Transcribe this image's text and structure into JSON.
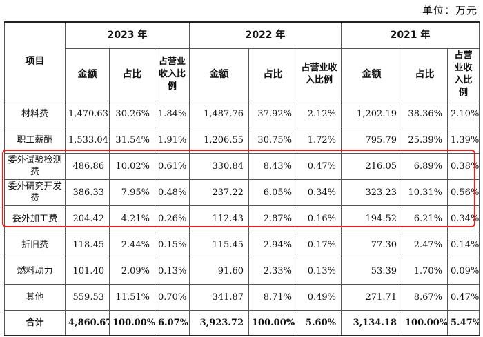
{
  "unit_label": "单位：万元",
  "header": {
    "item": "项目",
    "years": [
      "2023 年",
      "2022 年",
      "2021 年"
    ],
    "sub": [
      "金额",
      "占比",
      "占营业收入比例"
    ]
  },
  "rows": [
    {
      "label": "材料费",
      "v": [
        "1,470.63",
        "30.26%",
        "1.84%",
        "1,487.76",
        "37.92%",
        "2.12%",
        "1,202.19",
        "38.36%",
        "2.10%"
      ]
    },
    {
      "label": "职工薪酬",
      "v": [
        "1,533.04",
        "31.54%",
        "1.91%",
        "1,206.55",
        "30.75%",
        "1.72%",
        "795.79",
        "25.39%",
        "1.39%"
      ]
    },
    {
      "label": "委外试验检测费",
      "v": [
        "486.86",
        "10.02%",
        "0.61%",
        "330.84",
        "8.43%",
        "0.47%",
        "216.05",
        "6.89%",
        "0.38%"
      ]
    },
    {
      "label": "委外研究开发费",
      "v": [
        "386.33",
        "7.95%",
        "0.48%",
        "237.22",
        "6.05%",
        "0.34%",
        "323.23",
        "10.31%",
        "0.56%"
      ]
    },
    {
      "label": "委外加工费",
      "v": [
        "204.42",
        "4.21%",
        "0.26%",
        "112.43",
        "2.87%",
        "0.16%",
        "194.52",
        "6.21%",
        "0.34%"
      ]
    },
    {
      "label": "折旧费",
      "v": [
        "118.45",
        "2.44%",
        "0.15%",
        "115.45",
        "2.94%",
        "0.17%",
        "77.30",
        "2.47%",
        "0.14%"
      ]
    },
    {
      "label": "燃料动力",
      "v": [
        "101.40",
        "2.09%",
        "0.13%",
        "91.60",
        "2.33%",
        "0.13%",
        "53.39",
        "1.70%",
        "0.09%"
      ]
    },
    {
      "label": "其他",
      "v": [
        "559.53",
        "11.51%",
        "0.70%",
        "341.87",
        "8.71%",
        "0.49%",
        "271.71",
        "8.67%",
        "0.47%"
      ]
    },
    {
      "label": "合计",
      "v": [
        "4,860.67",
        "100.00%",
        "6.07%",
        "3,923.72",
        "100.00%",
        "5.60%",
        "3,134.18",
        "100.00%",
        "5.47%"
      ]
    }
  ],
  "highlight_color": "#e8201c"
}
